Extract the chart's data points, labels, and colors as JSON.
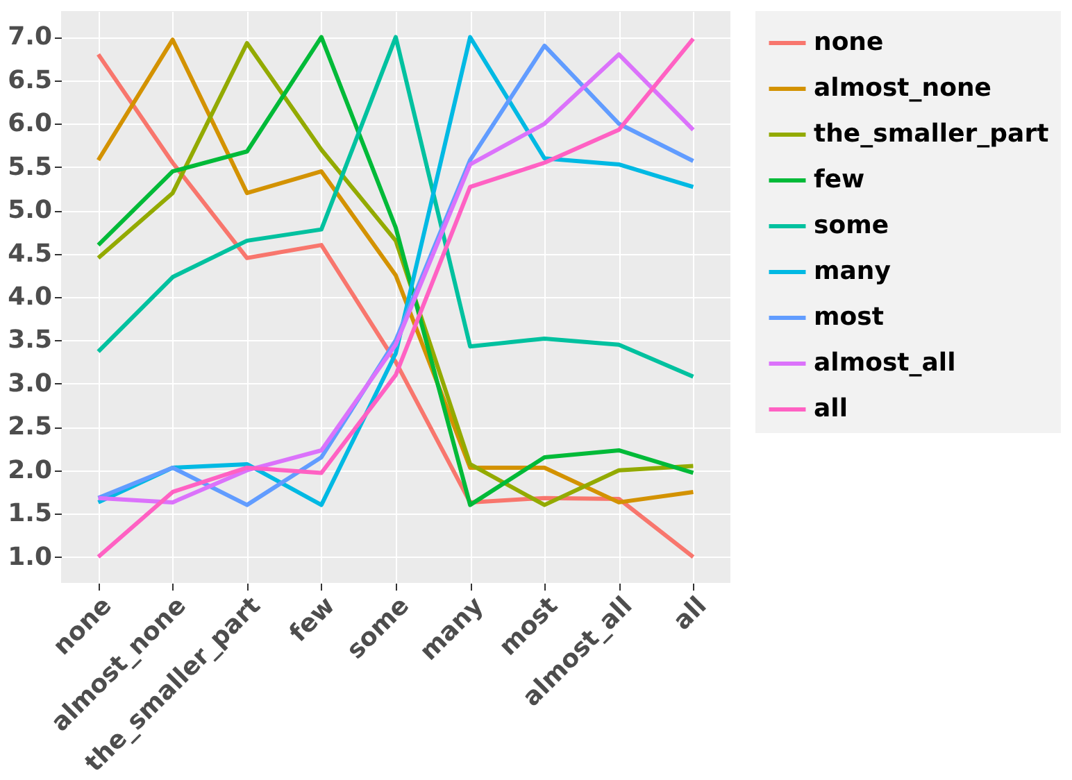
{
  "chart_data": {
    "type": "line",
    "categories": [
      "none",
      "almost_none",
      "the_smaller_part",
      "few",
      "some",
      "many",
      "most",
      "almost_all",
      "all"
    ],
    "series": [
      {
        "name": "none",
        "color": "#f8766d",
        "values": [
          6.8,
          5.55,
          4.45,
          4.6,
          3.25,
          1.63,
          1.68,
          1.67,
          1.0
        ]
      },
      {
        "name": "almost_none",
        "color": "#d39200",
        "values": [
          5.58,
          6.97,
          5.2,
          5.45,
          4.25,
          2.03,
          2.03,
          1.63,
          1.75
        ]
      },
      {
        "name": "the_smaller_part",
        "color": "#93aa00",
        "values": [
          4.45,
          5.2,
          6.93,
          5.7,
          4.65,
          2.07,
          1.6,
          2.0,
          2.05
        ]
      },
      {
        "name": "few",
        "color": "#00ba38",
        "values": [
          4.6,
          5.45,
          5.68,
          7.0,
          4.8,
          1.6,
          2.15,
          2.23,
          1.97
        ]
      },
      {
        "name": "some",
        "color": "#00c19f",
        "values": [
          3.37,
          4.23,
          4.65,
          4.78,
          7.0,
          3.43,
          3.52,
          3.45,
          3.08
        ]
      },
      {
        "name": "many",
        "color": "#00b9e3",
        "values": [
          1.63,
          2.03,
          2.07,
          1.6,
          3.35,
          7.0,
          5.6,
          5.53,
          5.27
        ]
      },
      {
        "name": "most",
        "color": "#619cff",
        "values": [
          1.68,
          2.03,
          1.6,
          2.15,
          3.5,
          5.58,
          6.9,
          6.0,
          5.57
        ]
      },
      {
        "name": "almost_all",
        "color": "#db72fb",
        "values": [
          1.68,
          1.63,
          2.0,
          2.23,
          3.45,
          5.53,
          6.0,
          6.8,
          5.93
        ]
      },
      {
        "name": "all",
        "color": "#ff61c3",
        "values": [
          1.0,
          1.75,
          2.03,
          1.97,
          3.1,
          5.27,
          5.55,
          5.93,
          6.98
        ]
      }
    ],
    "ylim": [
      0.7,
      7.3
    ],
    "yticks": [
      {
        "value": 1,
        "label": "1.0"
      },
      1.5,
      {
        "value": 2,
        "label": "2.0"
      },
      2.5,
      {
        "value": 3,
        "label": "3.0"
      },
      3.5,
      {
        "value": 4,
        "label": "4.0"
      },
      4.5,
      {
        "value": 5,
        "label": "5.0"
      },
      5.5,
      {
        "value": 6,
        "label": "6.0"
      },
      6.5,
      {
        "value": 7,
        "label": "7.0"
      }
    ],
    "grid": true,
    "legend": "right",
    "line_style": "solid",
    "marker": "none"
  }
}
